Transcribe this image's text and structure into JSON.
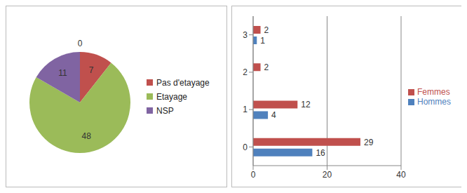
{
  "chart_data": [
    {
      "type": "pie",
      "categories": [
        "Pas d'etayage",
        "Etayage",
        "NSP",
        null
      ],
      "values": [
        7,
        48,
        11,
        0
      ],
      "colors": [
        "#c0504d",
        "#9bbb59",
        "#8064a2",
        "#4f81bd"
      ],
      "data_labels": true,
      "legend": "right"
    },
    {
      "type": "bar",
      "orientation": "horizontal",
      "categories": [
        "0",
        "1",
        "2",
        "3"
      ],
      "series": [
        {
          "name": "Femmes",
          "color": "#c0504d",
          "values": [
            29,
            12,
            2,
            2
          ]
        },
        {
          "name": "Hommes",
          "color": "#4f81bd",
          "values": [
            16,
            4,
            null,
            1
          ]
        }
      ],
      "xlim": [
        0,
        40
      ],
      "xticks": [
        0,
        20,
        40
      ],
      "grid": true,
      "data_labels": true,
      "legend": "right"
    }
  ]
}
